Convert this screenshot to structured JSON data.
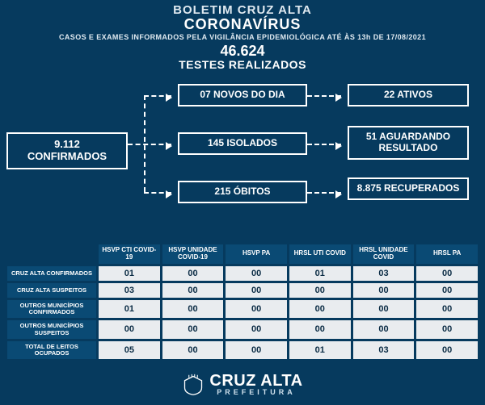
{
  "header": {
    "line1": "BOLETIM CRUZ ALTA",
    "line2": "CORONAVÍRUS",
    "sub": "CASOS E EXAMES INFORMADOS PELA VIGILÂNCIA EPIDEMIOLÓGICA ATÉ ÀS 13h DE 17/08/2021"
  },
  "tests": {
    "value": "46.624",
    "label": "TESTES REALIZADOS"
  },
  "flow": {
    "confirmed": "9.112 CONFIRMADOS",
    "new_today": "07 NOVOS DO DIA",
    "isolated": "145 ISOLADOS",
    "deaths": "215 ÓBITOS",
    "active": "22 ATIVOS",
    "awaiting": "51 AGUARDANDO RESULTADO",
    "recovered": "8.875 RECUPERADOS"
  },
  "table": {
    "columns": [
      "HSVP CTI COVID-19",
      "HSVP UNIDADE COVID-19",
      "HSVP PA",
      "HRSL UTI COVID",
      "HRSL UNIDADE COVID",
      "HRSL PA"
    ],
    "rows": [
      {
        "label": "CRUZ ALTA CONFIRMADOS",
        "cells": [
          "01",
          "00",
          "00",
          "01",
          "03",
          "00"
        ]
      },
      {
        "label": "CRUZ ALTA SUSPEITOS",
        "cells": [
          "03",
          "00",
          "00",
          "00",
          "00",
          "00"
        ]
      },
      {
        "label": "OUTROS MUNICÍPIOS CONFIRMADOS",
        "cells": [
          "01",
          "00",
          "00",
          "00",
          "00",
          "00"
        ]
      },
      {
        "label": "OUTROS MUNICÍPIOS SUSPEITOS",
        "cells": [
          "00",
          "00",
          "00",
          "00",
          "00",
          "00"
        ]
      },
      {
        "label": "TOTAL DE LEITOS OCUPADOS",
        "cells": [
          "05",
          "00",
          "00",
          "01",
          "03",
          "00"
        ]
      }
    ]
  },
  "footer": {
    "name": "CRUZ ALTA",
    "pref": "PREFEITURA"
  },
  "style": {
    "bg": "#063a5e",
    "box_border": "#ffffff",
    "table_header_bg": "#0a4a74",
    "table_cell_bg": "#e9ecef",
    "table_cell_fg": "#0a2b44"
  }
}
